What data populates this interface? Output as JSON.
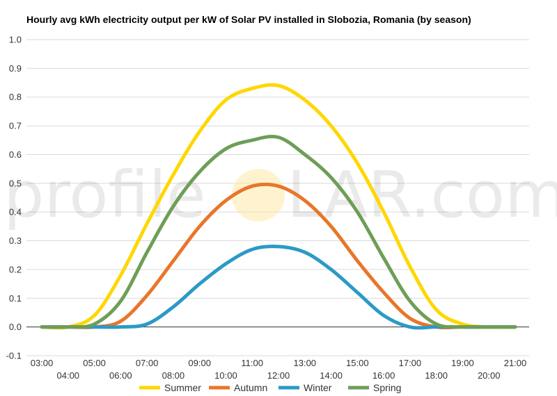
{
  "watermark": {
    "left": "profile",
    "right": "LAR.com"
  },
  "chart_data": {
    "type": "line",
    "title": "Hourly avg kWh electricity output per kW of Solar PV installed in Slobozia, Romania (by season)",
    "xlabel": "",
    "ylabel": "",
    "ylim": [
      -0.1,
      1.0
    ],
    "yticks": [
      "-0.1",
      "0.0",
      "0.1",
      "0.2",
      "0.3",
      "0.4",
      "0.5",
      "0.6",
      "0.7",
      "0.8",
      "0.9",
      "1.0"
    ],
    "categories": [
      "03:00",
      "04:00",
      "05:00",
      "06:00",
      "07:00",
      "08:00",
      "09:00",
      "10:00",
      "11:00",
      "12:00",
      "13:00",
      "14:00",
      "15:00",
      "16:00",
      "17:00",
      "18:00",
      "19:00",
      "20:00",
      "21:00"
    ],
    "legend_position": "bottom",
    "grid": true,
    "series": [
      {
        "name": "Summer",
        "color": "#FFD700",
        "values": [
          0.0,
          0.0,
          0.04,
          0.18,
          0.36,
          0.53,
          0.68,
          0.79,
          0.83,
          0.84,
          0.79,
          0.7,
          0.57,
          0.4,
          0.21,
          0.06,
          0.01,
          0.0,
          0.0
        ]
      },
      {
        "name": "Autumn",
        "color": "#E8762B",
        "values": [
          0.0,
          0.0,
          0.0,
          0.02,
          0.11,
          0.23,
          0.35,
          0.44,
          0.49,
          0.49,
          0.44,
          0.35,
          0.23,
          0.12,
          0.03,
          0.0,
          0.0,
          0.0,
          0.0
        ]
      },
      {
        "name": "Winter",
        "color": "#2B9AC6",
        "values": [
          0.0,
          0.0,
          0.0,
          0.0,
          0.01,
          0.07,
          0.15,
          0.22,
          0.27,
          0.28,
          0.26,
          0.2,
          0.12,
          0.04,
          0.0,
          0.0,
          0.0,
          0.0,
          0.0
        ]
      },
      {
        "name": "Spring",
        "color": "#6E9E57",
        "values": [
          0.0,
          0.0,
          0.01,
          0.09,
          0.26,
          0.42,
          0.54,
          0.62,
          0.65,
          0.66,
          0.6,
          0.52,
          0.4,
          0.24,
          0.09,
          0.01,
          0.0,
          0.0,
          0.0
        ]
      }
    ]
  }
}
